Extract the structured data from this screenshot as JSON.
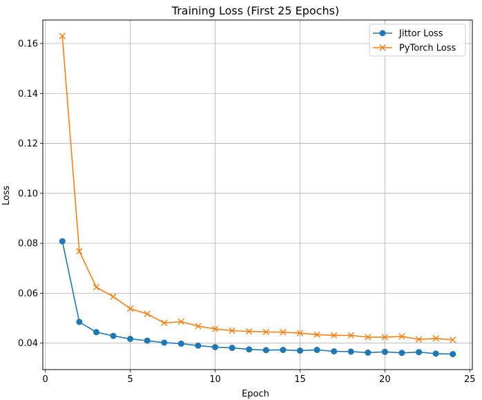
{
  "chart_data": {
    "type": "line",
    "title": "Training Loss (First 25 Epochs)",
    "xlabel": "Epoch",
    "ylabel": "Loss",
    "xlim": [
      -0.15,
      25.15
    ],
    "ylim": [
      0.0294,
      0.1694
    ],
    "xticks": [
      {
        "value": 0,
        "label": "0"
      },
      {
        "value": 5,
        "label": "5"
      },
      {
        "value": 10,
        "label": "10"
      },
      {
        "value": 15,
        "label": "15"
      },
      {
        "value": 20,
        "label": "20"
      },
      {
        "value": 25,
        "label": "25"
      }
    ],
    "yticks": [
      {
        "value": 0.04,
        "label": "0.04"
      },
      {
        "value": 0.06,
        "label": "0.06"
      },
      {
        "value": 0.08,
        "label": "0.08"
      },
      {
        "value": 0.1,
        "label": "0.10"
      },
      {
        "value": 0.12,
        "label": "0.12"
      },
      {
        "value": 0.14,
        "label": "0.14"
      },
      {
        "value": 0.16,
        "label": "0.16"
      }
    ],
    "grid": true,
    "legend_position": "top-right",
    "x": [
      1,
      2,
      3,
      4,
      5,
      6,
      7,
      8,
      9,
      10,
      11,
      12,
      13,
      14,
      15,
      16,
      17,
      18,
      19,
      20,
      21,
      22,
      23,
      24
    ],
    "series": [
      {
        "name": "Jittor Loss",
        "color": "#1f77b4",
        "marker": "circle",
        "values": [
          0.0808,
          0.0485,
          0.0444,
          0.0429,
          0.0417,
          0.041,
          0.0402,
          0.0398,
          0.039,
          0.0384,
          0.0381,
          0.0375,
          0.0372,
          0.0373,
          0.037,
          0.0373,
          0.0367,
          0.0366,
          0.0362,
          0.0365,
          0.0361,
          0.0364,
          0.0358,
          0.0356
        ]
      },
      {
        "name": "PyTorch Loss",
        "color": "#ff7f0e",
        "marker": "x",
        "values": [
          0.163,
          0.0768,
          0.0624,
          0.0586,
          0.0538,
          0.0517,
          0.0481,
          0.0486,
          0.0468,
          0.0457,
          0.045,
          0.0447,
          0.0445,
          0.0444,
          0.044,
          0.0434,
          0.0431,
          0.0431,
          0.0424,
          0.0424,
          0.0427,
          0.0415,
          0.0419,
          0.0413
        ]
      }
    ]
  }
}
